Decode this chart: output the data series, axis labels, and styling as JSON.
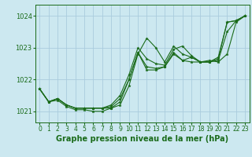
{
  "background_color": "#cce8f0",
  "grid_color": "#aaccdd",
  "line_color": "#1a6b1a",
  "marker_color": "#1a6b1a",
  "xlabel": "Graphe pression niveau de la mer (hPa)",
  "xlabel_fontsize": 7,
  "ylim": [
    1020.65,
    1024.35
  ],
  "yticks": [
    1021,
    1022,
    1023,
    1024
  ],
  "xlim": [
    -0.5,
    23.5
  ],
  "xticks": [
    0,
    1,
    2,
    3,
    4,
    5,
    6,
    7,
    8,
    9,
    10,
    11,
    12,
    13,
    14,
    15,
    16,
    17,
    18,
    19,
    20,
    21,
    22,
    23
  ],
  "series": [
    [
      1021.7,
      1021.3,
      1021.4,
      1021.2,
      1021.1,
      1021.1,
      1021.1,
      1021.1,
      1021.1,
      1021.2,
      1021.8,
      1022.8,
      1023.3,
      1023.0,
      1022.55,
      1023.05,
      1022.8,
      1022.7,
      1022.55,
      1022.55,
      1022.7,
      1023.8,
      1023.85,
      1024.0
    ],
    [
      1021.7,
      1021.3,
      1021.4,
      1021.2,
      1021.1,
      1021.1,
      1021.1,
      1021.1,
      1021.15,
      1021.4,
      1022.0,
      1022.85,
      1022.3,
      1022.3,
      1022.4,
      1022.8,
      1022.6,
      1022.55,
      1022.55,
      1022.55,
      1022.6,
      1023.5,
      1023.85,
      1024.0
    ],
    [
      1021.7,
      1021.3,
      1021.4,
      1021.2,
      1021.1,
      1021.1,
      1021.1,
      1021.1,
      1021.2,
      1021.5,
      1022.15,
      1023.0,
      1022.65,
      1022.5,
      1022.45,
      1022.95,
      1023.05,
      1022.75,
      1022.55,
      1022.6,
      1022.55,
      1022.8,
      1023.8,
      1024.0
    ],
    [
      1021.7,
      1021.3,
      1021.35,
      1021.15,
      1021.05,
      1021.05,
      1021.0,
      1021.0,
      1021.1,
      1021.3,
      1022.0,
      1022.85,
      1022.4,
      1022.35,
      1022.4,
      1022.85,
      1022.6,
      1022.7,
      1022.55,
      1022.55,
      1022.65,
      1023.8,
      1023.85,
      1024.0
    ]
  ]
}
